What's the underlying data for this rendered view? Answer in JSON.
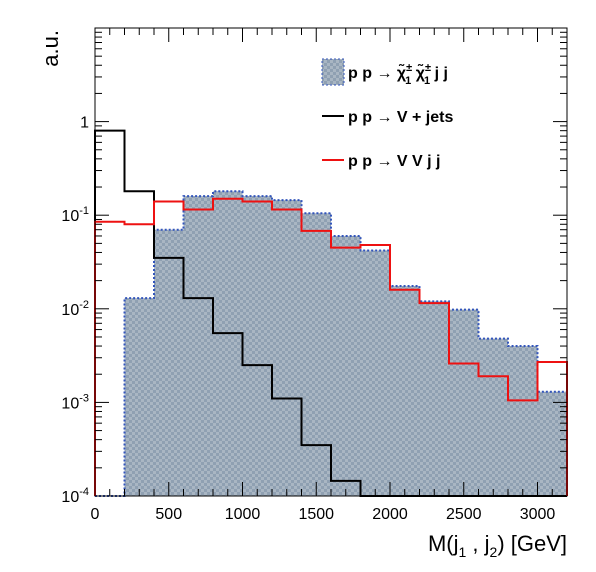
{
  "chart_data": {
    "type": "histogram",
    "xlabel": "M(j₁ , j₂) [GeV]",
    "ylabel": "a.u.",
    "xlim": [
      0,
      3200
    ],
    "ylim": [
      0.0001,
      10
    ],
    "yscale": "log",
    "grid": false,
    "legend_position": "top-right",
    "bin_edges": [
      0,
      200,
      400,
      600,
      800,
      1000,
      1200,
      1400,
      1600,
      1800,
      2000,
      2200,
      2400,
      2600,
      2800,
      3000,
      3200
    ],
    "x_ticks": [
      {
        "value": 0,
        "label": "0"
      },
      {
        "value": 500,
        "label": "500"
      },
      {
        "value": 1000,
        "label": "1000"
      },
      {
        "value": 1500,
        "label": "1500"
      },
      {
        "value": 2000,
        "label": "2000"
      },
      {
        "value": 2500,
        "label": "2500"
      },
      {
        "value": 3000,
        "label": "3000"
      }
    ],
    "y_ticks": [
      {
        "value": 0.0001,
        "base": "10",
        "exp": "-4"
      },
      {
        "value": 0.001,
        "base": "10",
        "exp": "-3"
      },
      {
        "value": 0.01,
        "base": "10",
        "exp": "-2"
      },
      {
        "value": 0.1,
        "base": "10",
        "exp": "-1"
      },
      {
        "value": 1,
        "base": "1",
        "exp": ""
      }
    ],
    "series": [
      {
        "name": "p p → χ̃₁± χ̃₁± j j",
        "legend": {
          "pre": "p p → ",
          "chi1": "χ̃",
          "chi2": "χ̃",
          "sub": "1",
          "sup": "±",
          "post": " j j"
        },
        "style": "filled-hatched",
        "color": "#3355bb",
        "fill": "#94a3b4",
        "values": [
          0.0001,
          0.013,
          0.07,
          0.16,
          0.18,
          0.16,
          0.145,
          0.105,
          0.06,
          0.042,
          0.0175,
          0.012,
          0.0098,
          0.0048,
          0.004,
          0.0013
        ]
      },
      {
        "name": "p p → V + jets",
        "style": "line",
        "color": "#000000",
        "values": [
          0.8,
          0.18,
          0.035,
          0.013,
          0.0055,
          0.0025,
          0.0011,
          0.00035,
          0.000145,
          0.0001,
          0.0001,
          0.0001,
          0.0001,
          0.0001,
          0.0001,
          0.0001
        ]
      },
      {
        "name": "p p → V V j j",
        "style": "line",
        "color": "#ee1111",
        "values": [
          0.085,
          0.08,
          0.14,
          0.115,
          0.15,
          0.14,
          0.115,
          0.068,
          0.045,
          0.048,
          0.016,
          0.0115,
          0.0026,
          0.0019,
          0.00105,
          0.0027
        ]
      }
    ]
  }
}
